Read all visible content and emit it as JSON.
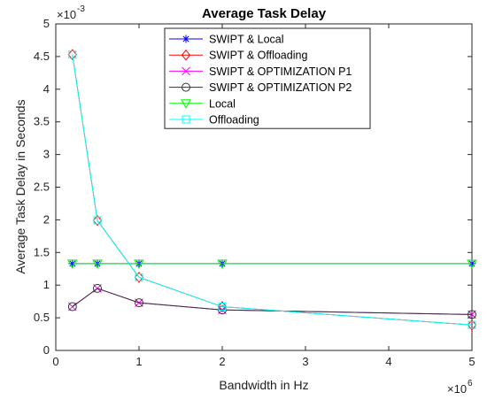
{
  "chart_data": {
    "type": "line",
    "title": "Average Task Delay",
    "xlabel": "Bandwidth in Hz",
    "ylabel": "Average Task Delay in Seconds",
    "x_exponent_label": "×10",
    "x_exponent_power": "6",
    "y_exponent_label": "×10",
    "y_exponent_power": "-3",
    "xlim": [
      0,
      5
    ],
    "ylim": [
      0,
      5
    ],
    "x_ticks": [
      "0",
      "1",
      "2",
      "3",
      "4",
      "5"
    ],
    "y_ticks": [
      "0",
      "0.5",
      "1",
      "1.5",
      "2",
      "2.5",
      "3",
      "3.5",
      "4",
      "4.5",
      "5"
    ],
    "grid": false,
    "legend_position": "top-center",
    "series": [
      {
        "name": "SWIPT & Local",
        "color": "#0000ff",
        "marker": "asterisk",
        "x": [
          0.2,
          0.5,
          1,
          2,
          5
        ],
        "y": [
          1.33,
          1.33,
          1.33,
          1.33,
          1.33
        ]
      },
      {
        "name": "SWIPT & Offloading",
        "color": "#ff0000",
        "marker": "diamond",
        "x": [
          0.2,
          0.5,
          1,
          2,
          5
        ],
        "y": [
          4.53,
          1.99,
          1.12,
          0.67,
          0.39
        ]
      },
      {
        "name": "SWIPT & OPTIMIZATION P1",
        "color": "#ff00ff",
        "marker": "x",
        "x": [
          0.2,
          0.5,
          1,
          2,
          5
        ],
        "y": [
          0.67,
          0.95,
          0.73,
          0.62,
          0.55
        ]
      },
      {
        "name": "SWIPT & OPTIMIZATION P2",
        "color": "#333333",
        "marker": "circle",
        "x": [
          0.2,
          0.5,
          1,
          2,
          5
        ],
        "y": [
          0.67,
          0.95,
          0.73,
          0.62,
          0.55
        ]
      },
      {
        "name": "Local",
        "color": "#00ff00",
        "marker": "triangle-down",
        "x": [
          0.2,
          0.5,
          1,
          2,
          5
        ],
        "y": [
          1.33,
          1.33,
          1.33,
          1.33,
          1.33
        ]
      },
      {
        "name": "Offloading",
        "color": "#00ffff",
        "marker": "square",
        "x": [
          0.2,
          0.5,
          1,
          2,
          5
        ],
        "y": [
          4.53,
          1.99,
          1.12,
          0.67,
          0.39
        ]
      }
    ]
  }
}
